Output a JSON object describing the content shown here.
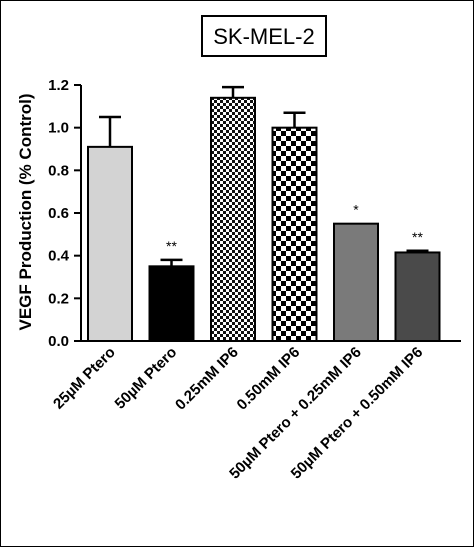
{
  "chart_data": {
    "type": "bar",
    "title": "SK-MEL-2",
    "ylabel": "VEGF Production (% Control)",
    "xlabel": "",
    "ylim": [
      0,
      1.2
    ],
    "yticks": [
      "0.0",
      "0.2",
      "0.4",
      "0.6",
      "0.8",
      "1.0",
      "1.2"
    ],
    "categories": [
      "25µM Ptero",
      "50µM Ptero",
      "0.25mM IP6",
      "0.50mM IP6",
      "50µM Ptero + 0.25mM IP6",
      "50µM Ptero + 0.50mM IP6"
    ],
    "values": [
      0.91,
      0.35,
      1.14,
      1.0,
      0.55,
      0.415
    ],
    "errors": [
      0.14,
      0.03,
      0.05,
      0.07,
      0.0,
      0.008
    ],
    "significance": [
      "",
      "**",
      "",
      "",
      "*",
      "**"
    ],
    "fills": [
      "light-grey",
      "black",
      "checker-fine",
      "checker-coarse",
      "dark-grey",
      "charcoal"
    ],
    "colors": {
      "light_grey": "#d3d3d3",
      "black": "#000000",
      "dark_grey": "#7a7a7a",
      "charcoal": "#4a4a4a"
    },
    "grid": false,
    "legend": "none"
  }
}
